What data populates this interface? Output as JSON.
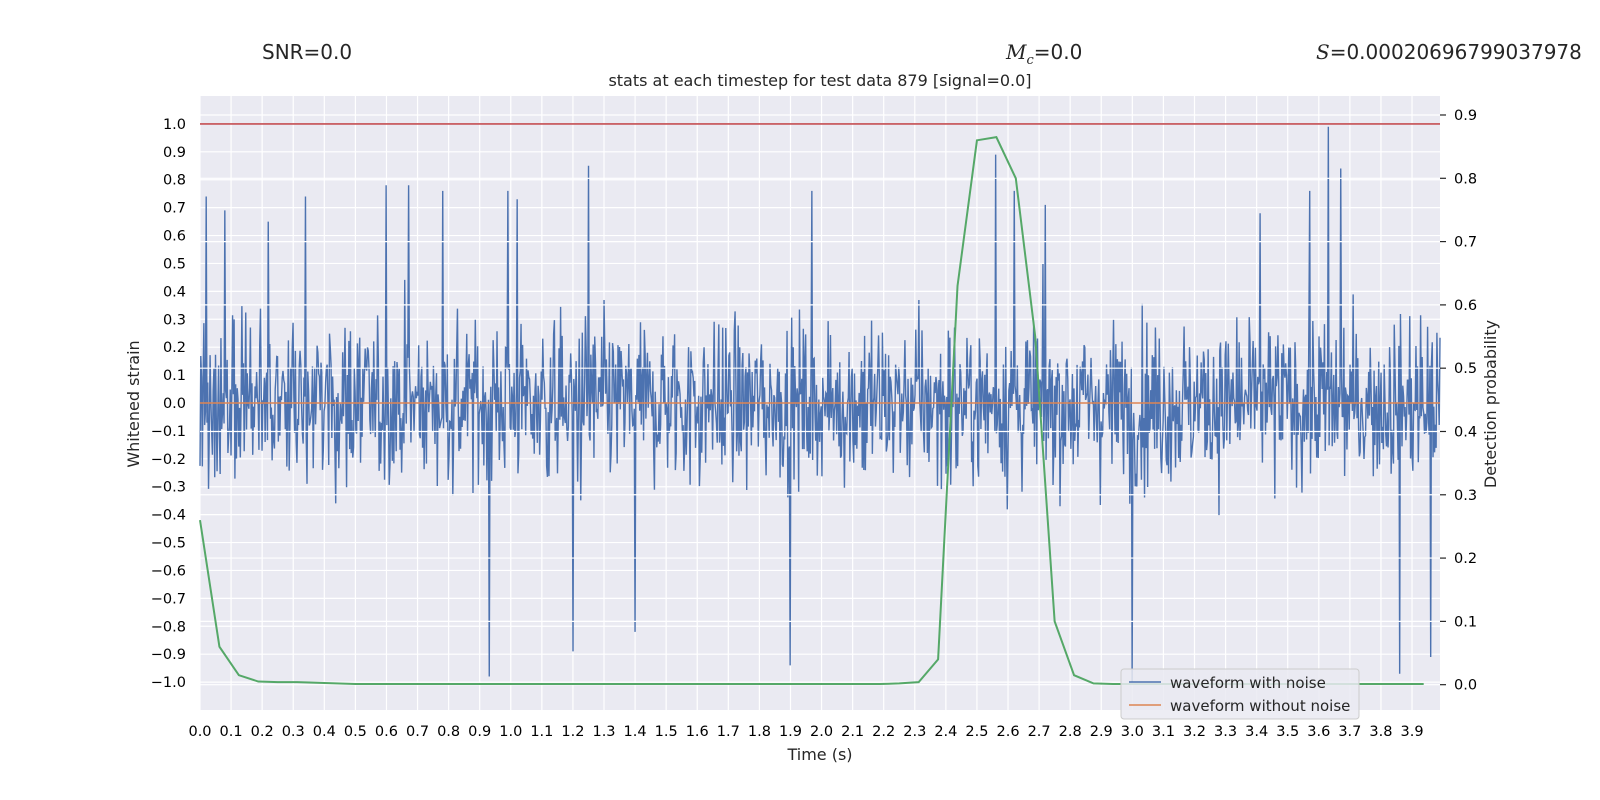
{
  "header": {
    "snr_label": "SNR=0.0",
    "mc_symbol": "M",
    "mc_subscript": "c",
    "mc_value": "=0.0",
    "s_symbol": "S",
    "s_value": "=0.00020696799037978"
  },
  "chart_data": {
    "type": "line",
    "title": "stats at each timestep for test data 879 [signal=0.0]",
    "xlabel": "Time (s)",
    "ylabel": "Whitened strain",
    "y2label": "Detection probability",
    "xlim": [
      0.0,
      3.99
    ],
    "ylim": [
      -1.1,
      1.1
    ],
    "y2lim": [
      -0.04,
      0.93
    ],
    "x_ticks": [
      0.0,
      0.1,
      0.2,
      0.3,
      0.4,
      0.5,
      0.6,
      0.7,
      0.8,
      0.9,
      1.0,
      1.1,
      1.2,
      1.3,
      1.4,
      1.5,
      1.6,
      1.7,
      1.8,
      1.9,
      2.0,
      2.1,
      2.2,
      2.3,
      2.4,
      2.5,
      2.6,
      2.7,
      2.8,
      2.9,
      3.0,
      3.1,
      3.2,
      3.3,
      3.4,
      3.5,
      3.6,
      3.7,
      3.8,
      3.9
    ],
    "x_tick_labels": [
      "0.0",
      "0.1",
      "0.2",
      "0.3",
      "0.4",
      "0.5",
      "0.6",
      "0.7",
      "0.8",
      "0.9",
      "1.0",
      "1.1",
      "1.2",
      "1.3",
      "1.4",
      "1.5",
      "1.6",
      "1.7",
      "1.8",
      "1.9",
      "2.0",
      "2.1",
      "2.2",
      "2.3",
      "2.4",
      "2.5",
      "2.6",
      "2.7",
      "2.8",
      "2.9",
      "3.0",
      "3.1",
      "3.2",
      "3.3",
      "3.4",
      "3.5",
      "3.6",
      "3.7",
      "3.8",
      "3.9"
    ],
    "y_ticks": [
      1.0,
      0.9,
      0.8,
      0.7,
      0.6,
      0.5,
      0.4,
      0.3,
      0.2,
      0.1,
      0.0,
      -0.1,
      -0.2,
      -0.3,
      -0.4,
      -0.5,
      -0.6,
      -0.7,
      -0.8,
      -0.9,
      -1.0
    ],
    "y_tick_labels": [
      "1.0",
      "0.9",
      "0.8",
      "0.7",
      "0.6",
      "0.5",
      "0.4",
      "0.3",
      "0.2",
      "0.1",
      "0.0",
      "−0.1",
      "−0.2",
      "−0.3",
      "−0.4",
      "−0.5",
      "−0.6",
      "−0.7",
      "−0.8",
      "−0.9",
      "−1.0"
    ],
    "y2_ticks": [
      0.9,
      0.8,
      0.7,
      0.6,
      0.5,
      0.4,
      0.3,
      0.2,
      0.1,
      0.0
    ],
    "y2_tick_labels": [
      "0.9",
      "0.8",
      "0.7",
      "0.6",
      "0.5",
      "0.4",
      "0.3",
      "0.2",
      "0.1",
      "0.0"
    ],
    "grid": true,
    "legend_position": "lower-right",
    "noise_seed": 879,
    "noise_points": 1600,
    "noise_scale": 0.2,
    "noise_spikes": [
      [
        0.02,
        0.74
      ],
      [
        0.08,
        0.69
      ],
      [
        0.22,
        0.65
      ],
      [
        0.34,
        0.74
      ],
      [
        0.6,
        0.78
      ],
      [
        0.67,
        0.78
      ],
      [
        0.78,
        0.76
      ],
      [
        0.93,
        -0.98
      ],
      [
        0.99,
        0.76
      ],
      [
        1.02,
        0.73
      ],
      [
        1.2,
        -0.89
      ],
      [
        1.25,
        0.85
      ],
      [
        1.4,
        -0.82
      ],
      [
        1.9,
        -0.94
      ],
      [
        1.97,
        0.76
      ],
      [
        2.56,
        0.89
      ],
      [
        2.62,
        0.76
      ],
      [
        2.72,
        0.71
      ],
      [
        3.0,
        -1.0
      ],
      [
        3.41,
        0.68
      ],
      [
        3.57,
        0.76
      ],
      [
        3.63,
        0.99
      ],
      [
        3.67,
        0.84
      ],
      [
        3.86,
        -0.97
      ],
      [
        3.96,
        -0.91
      ]
    ],
    "series": [
      {
        "name": "waveform with noise",
        "axis": "left",
        "color": "#4c72b0",
        "values": []
      },
      {
        "name": "waveform without noise",
        "axis": "left",
        "color": "#dd8452",
        "x": [
          0.0,
          3.99
        ],
        "values": [
          0.0,
          0.0
        ]
      },
      {
        "name": "",
        "axis": "right",
        "color": "#55a868",
        "x": [
          0.0,
          0.0625,
          0.125,
          0.1875,
          0.25,
          0.3125,
          0.375,
          0.4375,
          0.5,
          0.5625,
          0.625,
          0.6875,
          0.75,
          0.8125,
          0.875,
          0.9375,
          1.0,
          1.0625,
          1.125,
          1.1875,
          1.25,
          1.3125,
          1.375,
          1.4375,
          1.5,
          1.5625,
          1.625,
          1.6875,
          1.75,
          1.8125,
          1.875,
          1.9375,
          2.0,
          2.0625,
          2.125,
          2.1875,
          2.25,
          2.3125,
          2.375,
          2.4375,
          2.5,
          2.5625,
          2.625,
          2.6875,
          2.75,
          2.8125,
          2.875,
          2.9375,
          3.0,
          3.0625,
          3.125,
          3.1875,
          3.25,
          3.3125,
          3.375,
          3.4375,
          3.5,
          3.5625,
          3.625,
          3.6875,
          3.75,
          3.8125,
          3.875,
          3.9375
        ],
        "values": [
          0.26,
          0.06,
          0.015,
          0.005,
          0.004,
          0.004,
          0.003,
          0.002,
          0.001,
          0.001,
          0.001,
          0.001,
          0.001,
          0.001,
          0.001,
          0.001,
          0.001,
          0.001,
          0.001,
          0.001,
          0.001,
          0.001,
          0.001,
          0.001,
          0.001,
          0.001,
          0.001,
          0.001,
          0.001,
          0.001,
          0.001,
          0.001,
          0.001,
          0.001,
          0.001,
          0.001,
          0.002,
          0.004,
          0.04,
          0.63,
          0.86,
          0.865,
          0.8,
          0.55,
          0.1,
          0.015,
          0.002,
          0.001,
          0.001,
          0.001,
          0.001,
          0.001,
          0.001,
          0.001,
          0.001,
          0.001,
          0.001,
          0.001,
          0.001,
          0.001,
          0.001,
          0.001,
          0.001,
          0.001
        ]
      }
    ],
    "hline": {
      "value": 1.0,
      "axis": "left",
      "color": "#c44e52"
    }
  }
}
